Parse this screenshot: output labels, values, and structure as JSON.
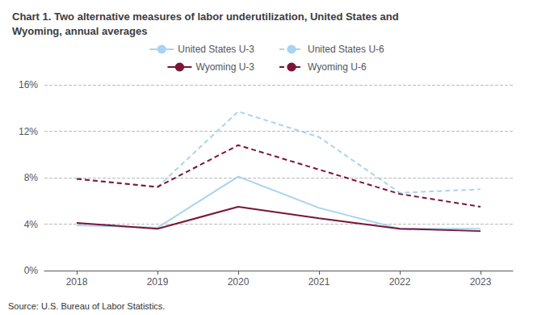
{
  "chart_data": {
    "type": "line",
    "title": [
      "Chart 1. Two alternative measures of labor underutilization, United States and",
      "Wyoming, annual averages"
    ],
    "annotations": [
      "Source: U.S. Bureau of Labor Statistics."
    ],
    "x": [
      2018,
      2019,
      2020,
      2021,
      2022,
      2023
    ],
    "series": [
      {
        "name": "United States U-3",
        "color": "#a8d4f0",
        "line_style": "solid",
        "values": [
          3.9,
          3.7,
          8.1,
          5.4,
          3.6,
          3.6
        ]
      },
      {
        "name": "United States U-6",
        "color": "#a8d4f0",
        "line_style": "dashed",
        "values": [
          7.9,
          7.2,
          13.7,
          11.5,
          6.7,
          7.0
        ]
      },
      {
        "name": "Wyoming U-3",
        "color": "#7b1535",
        "line_style": "solid",
        "values": [
          4.1,
          3.6,
          5.5,
          4.5,
          3.6,
          3.4
        ]
      },
      {
        "name": "Wyoming U-6",
        "color": "#7b1535",
        "line_style": "dashed",
        "values": [
          7.9,
          7.2,
          10.8,
          8.7,
          6.6,
          5.5
        ]
      }
    ],
    "xlim": [
      2017.6,
      2023.4
    ],
    "xticks": [
      2018,
      2019,
      2020,
      2021,
      2022,
      2023
    ],
    "ylim": [
      0,
      16
    ],
    "yticks": [
      {
        "value": 0,
        "label": "0%"
      },
      {
        "value": 4,
        "label": "4%"
      },
      {
        "value": 8,
        "label": "8%"
      },
      {
        "value": 12,
        "label": "12%"
      },
      {
        "value": 16,
        "label": "16%"
      }
    ],
    "grid": true,
    "legend": "top"
  }
}
